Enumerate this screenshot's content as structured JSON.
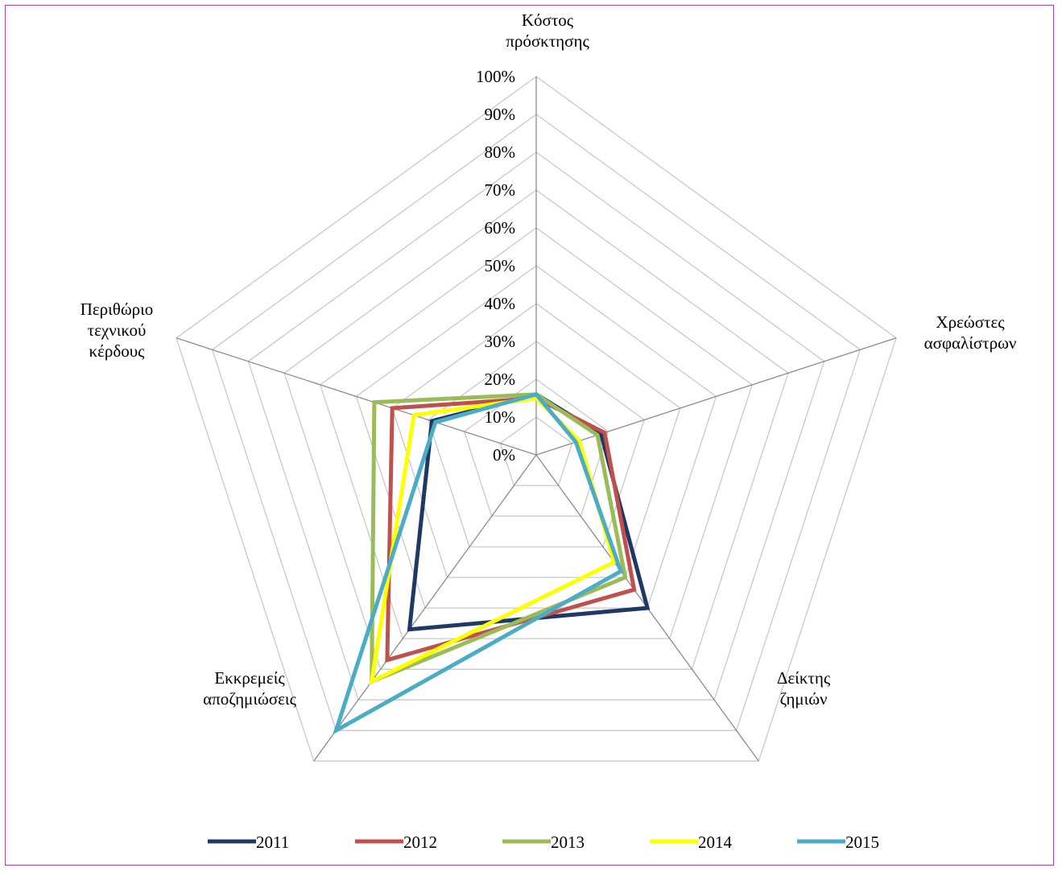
{
  "chart_data": {
    "type": "radar",
    "categories": [
      [
        "Κόστος",
        "πρόσκτησης"
      ],
      [
        "Χρεώστες",
        "ασφαλίστρων"
      ],
      [
        "Δείκτης",
        "ζημιών"
      ],
      [
        "Εκκρεμείς",
        "αποζημιώσεις"
      ],
      [
        "Περιθώριο",
        "τεχνικού",
        "κέρδους"
      ]
    ],
    "ticks": [
      "0%",
      "10%",
      "20%",
      "30%",
      "40%",
      "50%",
      "60%",
      "70%",
      "80%",
      "90%",
      "100%"
    ],
    "rlim": [
      0,
      100
    ],
    "grid": true,
    "legend_position": "bottom",
    "series": [
      {
        "name": "2011",
        "color": "#1f3864",
        "values": [
          16,
          18,
          50,
          57,
          29
        ]
      },
      {
        "name": "2012",
        "color": "#c0504d",
        "values": [
          15,
          19,
          44,
          67,
          40
        ]
      },
      {
        "name": "2013",
        "color": "#9bbb59",
        "values": [
          16,
          17,
          40,
          74,
          45
        ]
      },
      {
        "name": "2014",
        "color": "#ffff00",
        "values": [
          15,
          12,
          35,
          74,
          34
        ]
      },
      {
        "name": "2015",
        "color": "#4bacc6",
        "values": [
          16,
          11,
          38,
          90,
          28
        ]
      }
    ]
  }
}
